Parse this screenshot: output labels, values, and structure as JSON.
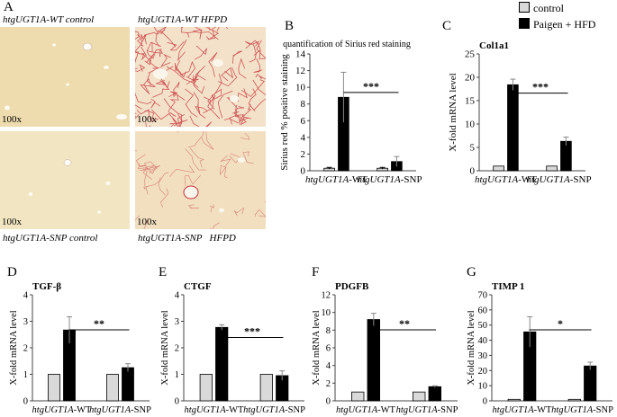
{
  "panel_letters": {
    "a": "A",
    "b": "B",
    "c": "C",
    "d": "D",
    "e": "E",
    "f": "F",
    "g": "G"
  },
  "micrographs": {
    "wt_control": {
      "italic": "htgUGT1A",
      "suffix": "-WT control",
      "magnification": "100x"
    },
    "wt_hfpd": {
      "italic": "htgUGT1A",
      "suffix": "-WT HFPD",
      "magnification": "100x"
    },
    "snp_control": {
      "italic": "htgUGT1A",
      "suffix": "-SNP control",
      "magnification": "100x"
    },
    "snp_hfpd": {
      "italic": "htgUGT1A",
      "suffix": "-SNP   HFPD",
      "magnification": "100x"
    }
  },
  "legend": {
    "control": "control",
    "hfd": "Paigen + HFD"
  },
  "colors": {
    "control": "#d9d9d9",
    "hfd": "#000000",
    "tissue": "#f1e0b4",
    "collagen": "#c8323c"
  },
  "chart_data": [
    {
      "panel": "B",
      "type": "bar",
      "title": "quantification of Sirius red staining",
      "ylabel": "Sirius red % positive staining",
      "ylim": [
        0,
        14
      ],
      "yticks": [
        0,
        2,
        4,
        6,
        8,
        10,
        12,
        14
      ],
      "categories": [
        {
          "italic": "htgUGT1A",
          "suffix": "-WT"
        },
        {
          "italic": "htgUGT1A",
          "suffix": "-SNP"
        }
      ],
      "series": [
        {
          "name": "control",
          "values": [
            0.3,
            0.3
          ],
          "errors": [
            0.1,
            0.1
          ]
        },
        {
          "name": "Paigen + HFD",
          "values": [
            8.8,
            1.1
          ],
          "errors": [
            3.0,
            0.6
          ]
        }
      ],
      "significance": "***"
    },
    {
      "panel": "C",
      "type": "bar",
      "title": "Col1a1",
      "ylabel": "X-fold mRNA level",
      "ylim": [
        0,
        25
      ],
      "yticks": [
        0,
        5,
        10,
        15,
        20,
        25
      ],
      "categories": [
        {
          "italic": "htgUGT1A",
          "suffix": "-WT"
        },
        {
          "italic": "htgUGT1A",
          "suffix": "-SNP"
        }
      ],
      "series": [
        {
          "name": "control",
          "values": [
            1.0,
            1.0
          ],
          "errors": [
            0,
            0
          ]
        },
        {
          "name": "Paigen + HFD",
          "values": [
            18.4,
            6.3
          ],
          "errors": [
            1.2,
            0.9
          ]
        }
      ],
      "significance": "***"
    },
    {
      "panel": "D",
      "type": "bar",
      "title": "TGF-β",
      "ylabel": "X-fold mRNA level",
      "ylim": [
        0,
        4
      ],
      "yticks": [
        0,
        1,
        2,
        3,
        4
      ],
      "categories": [
        {
          "italic": "htgUGT1A",
          "suffix": "-WT"
        },
        {
          "italic": "htgUGT1A",
          "suffix": "-SNP"
        }
      ],
      "series": [
        {
          "name": "control",
          "values": [
            1.0,
            1.0
          ],
          "errors": [
            0,
            0
          ]
        },
        {
          "name": "Paigen + HFD",
          "values": [
            2.67,
            1.25
          ],
          "errors": [
            0.5,
            0.15
          ]
        }
      ],
      "significance": "**"
    },
    {
      "panel": "E",
      "type": "bar",
      "title": "CTGF",
      "ylabel": "X-fold mRNA level",
      "ylim": [
        0,
        4
      ],
      "yticks": [
        0,
        1,
        2,
        3,
        4
      ],
      "categories": [
        {
          "italic": "htgUGT1A",
          "suffix": "-WT"
        },
        {
          "italic": "htgUGT1A",
          "suffix": "-SNP"
        }
      ],
      "series": [
        {
          "name": "control",
          "values": [
            1.0,
            1.0
          ],
          "errors": [
            0,
            0
          ]
        },
        {
          "name": "Paigen + HFD",
          "values": [
            2.77,
            0.95
          ],
          "errors": [
            0.1,
            0.18
          ]
        }
      ],
      "significance": "***"
    },
    {
      "panel": "F",
      "type": "bar",
      "title": "PDGFB",
      "ylabel": "X-fold mRNA level",
      "ylim": [
        0,
        12
      ],
      "yticks": [
        0,
        2,
        4,
        6,
        8,
        10,
        12
      ],
      "categories": [
        {
          "italic": "htgUGT1A",
          "suffix": "-WT"
        },
        {
          "italic": "htgUGT1A",
          "suffix": "-SNP"
        }
      ],
      "series": [
        {
          "name": "control",
          "values": [
            1.0,
            1.0
          ],
          "errors": [
            0,
            0
          ]
        },
        {
          "name": "Paigen + HFD",
          "values": [
            9.2,
            1.6
          ],
          "errors": [
            0.7,
            0.1
          ]
        }
      ],
      "significance": "**"
    },
    {
      "panel": "G",
      "type": "bar",
      "title": "TIMP 1",
      "ylabel": "X-fold mRNA level",
      "ylim": [
        0,
        70
      ],
      "yticks": [
        0,
        10,
        20,
        30,
        40,
        50,
        60,
        70
      ],
      "categories": [
        {
          "italic": "htgUGT1A",
          "suffix": "-WT"
        },
        {
          "italic": "htgUGT1A",
          "suffix": "-SNP"
        }
      ],
      "series": [
        {
          "name": "control",
          "values": [
            1.0,
            1.0
          ],
          "errors": [
            0,
            0
          ]
        },
        {
          "name": "Paigen + HFD",
          "values": [
            45.5,
            23.0
          ],
          "errors": [
            10.0,
            2.5
          ]
        }
      ],
      "significance": "*"
    }
  ]
}
